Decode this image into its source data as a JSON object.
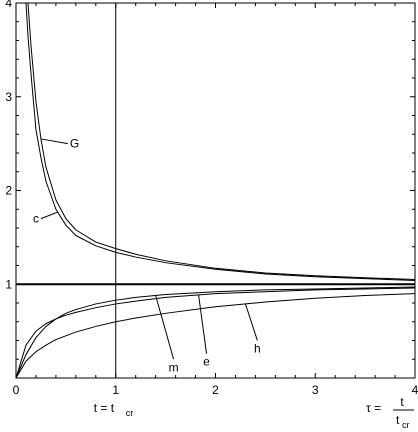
{
  "chart_data": {
    "type": "line",
    "title": "",
    "xlabel": "",
    "ylabel": "",
    "xlim": [
      0,
      4
    ],
    "ylim": [
      0,
      4
    ],
    "x_ticks": [
      0,
      1,
      2,
      3,
      4
    ],
    "x_tick_labels": [
      "0",
      "1",
      "2",
      "3",
      "4"
    ],
    "y_ticks": [
      1,
      2,
      3,
      4
    ],
    "y_tick_labels": [
      "1",
      "2",
      "3",
      "4"
    ],
    "grid": false,
    "reference_lines": [
      {
        "orientation": "horizontal",
        "value": 1
      },
      {
        "orientation": "vertical",
        "value": 1
      }
    ],
    "annotations": {
      "t_equals": {
        "lhs": "t = t",
        "sub": "cr"
      },
      "tau_def": {
        "lhs": "τ =",
        "numerator": "t",
        "denominator": "t",
        "den_sub": "cr"
      }
    },
    "series": [
      {
        "name": "G",
        "x": [
          0.12,
          0.15,
          0.2,
          0.25,
          0.3,
          0.4,
          0.5,
          0.6,
          0.8,
          1.0,
          1.2,
          1.5,
          2.0,
          2.5,
          3.0,
          3.5,
          4.0
        ],
        "y": [
          4.0,
          3.55,
          2.95,
          2.55,
          2.25,
          1.9,
          1.7,
          1.58,
          1.45,
          1.38,
          1.32,
          1.25,
          1.17,
          1.12,
          1.09,
          1.07,
          1.05
        ]
      },
      {
        "name": "c",
        "x": [
          0.1,
          0.12,
          0.15,
          0.2,
          0.25,
          0.3,
          0.4,
          0.5,
          0.6,
          0.8,
          1.0,
          1.2,
          1.5,
          2.0,
          2.5,
          3.0,
          3.5,
          4.0
        ],
        "y": [
          4.0,
          3.65,
          3.25,
          2.65,
          2.35,
          2.1,
          1.8,
          1.63,
          1.52,
          1.41,
          1.34,
          1.29,
          1.23,
          1.16,
          1.11,
          1.08,
          1.06,
          1.04
        ]
      },
      {
        "name": "m",
        "x": [
          0.0,
          0.1,
          0.2,
          0.3,
          0.4,
          0.5,
          0.6,
          0.8,
          1.0,
          1.2,
          1.5,
          2.0,
          2.5,
          3.0,
          3.5,
          4.0
        ],
        "y": [
          0.0,
          0.25,
          0.43,
          0.55,
          0.63,
          0.69,
          0.73,
          0.79,
          0.83,
          0.86,
          0.89,
          0.92,
          0.94,
          0.95,
          0.96,
          0.97
        ]
      },
      {
        "name": "e",
        "x": [
          0.0,
          0.1,
          0.2,
          0.3,
          0.4,
          0.5,
          0.6,
          0.8,
          1.0,
          1.2,
          1.5,
          2.0,
          2.5,
          3.0,
          3.5,
          4.0
        ],
        "y": [
          0.0,
          0.35,
          0.5,
          0.58,
          0.63,
          0.67,
          0.7,
          0.75,
          0.79,
          0.82,
          0.86,
          0.9,
          0.92,
          0.94,
          0.95,
          0.96
        ]
      },
      {
        "name": "h",
        "x": [
          0.0,
          0.1,
          0.2,
          0.3,
          0.4,
          0.5,
          0.6,
          0.8,
          1.0,
          1.2,
          1.5,
          2.0,
          2.5,
          3.0,
          3.5,
          4.0
        ],
        "y": [
          0.0,
          0.18,
          0.28,
          0.35,
          0.41,
          0.45,
          0.49,
          0.55,
          0.6,
          0.64,
          0.69,
          0.76,
          0.81,
          0.85,
          0.88,
          0.9
        ]
      }
    ],
    "curve_labels": [
      {
        "series": "G",
        "text": "G",
        "at_x": 0.25,
        "at_y": 2.55,
        "text_x": 0.52,
        "text_y": 2.5
      },
      {
        "series": "c",
        "text": "c",
        "at_x": 0.42,
        "at_y": 1.77,
        "text_x": 0.25,
        "text_y": 1.7
      },
      {
        "series": "m",
        "text": "m",
        "at_x": 1.4,
        "at_y": 0.88,
        "text_x": 1.58,
        "text_y": 0.2
      },
      {
        "series": "e",
        "text": "e",
        "at_x": 1.83,
        "at_y": 0.89,
        "text_x": 1.91,
        "text_y": 0.26
      },
      {
        "series": "h",
        "text": "h",
        "at_x": 2.3,
        "at_y": 0.79,
        "text_x": 2.42,
        "text_y": 0.4
      }
    ]
  }
}
